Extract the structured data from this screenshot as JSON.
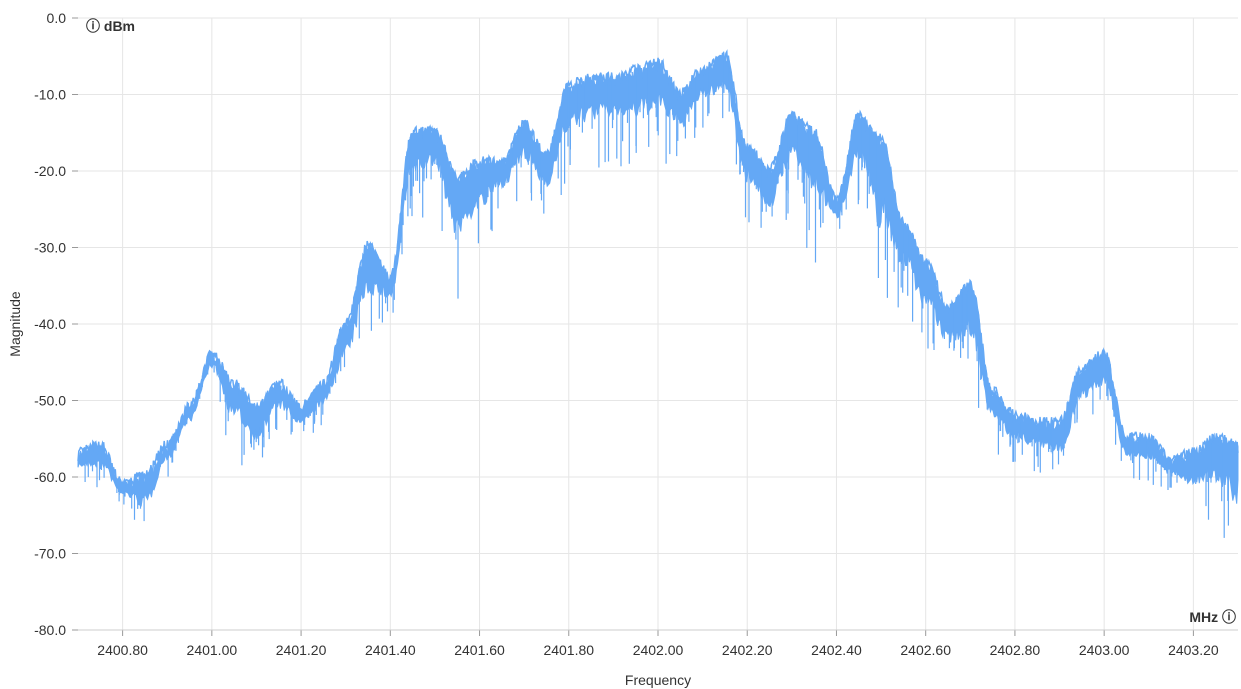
{
  "chart_data": {
    "type": "line",
    "title": "",
    "xlabel": "Frequency",
    "ylabel": "Magnitude",
    "x_unit_label": "MHz ⓘ",
    "y_unit_label": "ⓘ dBm",
    "xlim": [
      2400.7,
      2403.3
    ],
    "ylim": [
      -80,
      0
    ],
    "x_ticks": [
      "2400.80",
      "2401.00",
      "2401.20",
      "2401.40",
      "2401.60",
      "2401.80",
      "2402.00",
      "2402.20",
      "2402.40",
      "2402.60",
      "2402.80",
      "2403.00",
      "2403.20"
    ],
    "y_ticks": [
      "0.0",
      "-10.0",
      "-20.0",
      "-30.0",
      "-40.0",
      "-50.0",
      "-60.0",
      "-70.0",
      "-80.0"
    ],
    "grid": true,
    "line_color": "#64a8f5",
    "series": [
      {
        "x": [
          2400.7,
          2400.75,
          2400.8,
          2400.85,
          2400.9,
          2400.95,
          2401.0,
          2401.05,
          2401.1,
          2401.15,
          2401.2,
          2401.25,
          2401.3,
          2401.35,
          2401.4,
          2401.45,
          2401.5,
          2401.55,
          2401.6,
          2401.65,
          2401.7,
          2401.75,
          2401.8,
          2401.85,
          2401.9,
          2401.95,
          2402.0,
          2402.05,
          2402.1,
          2402.15,
          2402.2,
          2402.25,
          2402.3,
          2402.35,
          2402.4,
          2402.45,
          2402.5,
          2402.55,
          2402.6,
          2402.65,
          2402.7,
          2402.75,
          2402.8,
          2402.85,
          2402.9,
          2402.95,
          2403.0,
          2403.05,
          2403.1,
          2403.15,
          2403.2,
          2403.25,
          2403.3
        ],
        "y": [
          -57,
          -56,
          -61,
          -60,
          -56,
          -51,
          -44,
          -48,
          -51,
          -48,
          -51,
          -48,
          -40,
          -30,
          -34,
          -15,
          -15,
          -21,
          -19,
          -19,
          -14,
          -18,
          -9,
          -8,
          -8,
          -7,
          -6,
          -10,
          -7,
          -5,
          -17,
          -20,
          -13,
          -15,
          -24,
          -13,
          -16,
          -27,
          -32,
          -38,
          -35,
          -49,
          -52,
          -53,
          -53,
          -46,
          -44,
          -55,
          -55,
          -58,
          -57,
          -55,
          -56
        ],
        "y_min": [
          -61,
          -62,
          -64,
          -69,
          -60,
          -55,
          -48,
          -58,
          -60,
          -55,
          -56,
          -54,
          -50,
          -44,
          -40,
          -27,
          -25,
          -38,
          -33,
          -26,
          -25,
          -27,
          -22,
          -20,
          -19,
          -21,
          -20,
          -20,
          -15,
          -15,
          -27,
          -31,
          -26,
          -33,
          -29,
          -26,
          -42,
          -39,
          -45,
          -48,
          -50,
          -57,
          -59,
          -60,
          -62,
          -55,
          -53,
          -60,
          -61,
          -62,
          -66,
          -68,
          -73
        ]
      }
    ]
  }
}
